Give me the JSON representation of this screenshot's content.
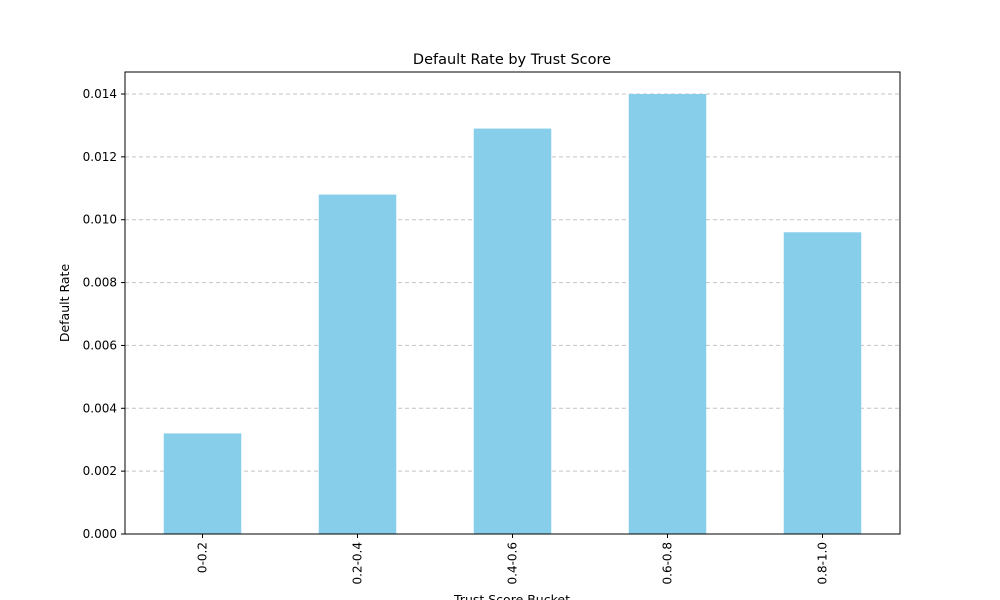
{
  "chart_data": {
    "type": "bar",
    "title": "Default Rate by Trust Score",
    "xlabel": "Trust Score Bucket",
    "ylabel": "Default Rate",
    "categories": [
      "0-0.2",
      "0.2-0.4",
      "0.4-0.6",
      "0.6-0.8",
      "0.8-1.0"
    ],
    "values": [
      0.0032,
      0.0108,
      0.0129,
      0.014,
      0.0096
    ],
    "ylim": [
      0,
      0.0147
    ],
    "yticks": [
      "0.000",
      "0.002",
      "0.004",
      "0.006",
      "0.008",
      "0.010",
      "0.012",
      "0.014"
    ],
    "ytick_values": [
      0,
      0.002,
      0.004,
      0.006,
      0.008,
      0.01,
      0.012,
      0.014
    ],
    "grid": "y-dashed",
    "bar_color": "#87CEEB",
    "legend": "none"
  }
}
